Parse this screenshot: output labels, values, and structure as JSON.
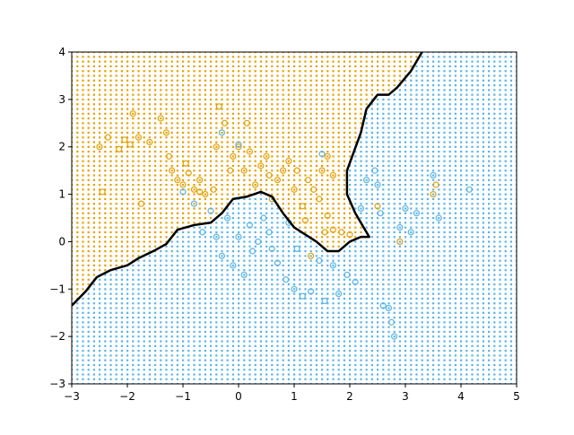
{
  "chart_data": {
    "type": "scatter",
    "title": "",
    "xlabel": "",
    "ylabel": "",
    "xlim": [
      -3,
      5
    ],
    "ylim": [
      -3,
      4
    ],
    "x_ticks": [
      -3,
      -2,
      -1,
      0,
      1,
      2,
      3,
      4,
      5
    ],
    "y_ticks": [
      -3,
      -2,
      -1,
      0,
      1,
      2,
      3,
      4
    ],
    "x_tick_labels": [
      "−3",
      "−2",
      "−1",
      "0",
      "1",
      "2",
      "3",
      "4",
      "5"
    ],
    "y_tick_labels": [
      "−3",
      "−2",
      "−1",
      "0",
      "1",
      "2",
      "3",
      "4"
    ],
    "grid": false,
    "legend": "none",
    "colors": {
      "class_orange": "#E69F00",
      "class_blue": "#56B4E9",
      "boundary": "#000000"
    },
    "background_grid_step": 0.1,
    "decision_boundary": [
      [
        -3.0,
        -1.35
      ],
      [
        -2.75,
        -1.05
      ],
      [
        -2.55,
        -0.75
      ],
      [
        -2.3,
        -0.6
      ],
      [
        -2.0,
        -0.5
      ],
      [
        -1.8,
        -0.35
      ],
      [
        -1.5,
        -0.18
      ],
      [
        -1.3,
        -0.05
      ],
      [
        -1.1,
        0.25
      ],
      [
        -0.8,
        0.35
      ],
      [
        -0.5,
        0.4
      ],
      [
        -0.3,
        0.6
      ],
      [
        -0.1,
        0.9
      ],
      [
        0.15,
        0.95
      ],
      [
        0.4,
        1.05
      ],
      [
        0.6,
        0.95
      ],
      [
        0.8,
        0.6
      ],
      [
        1.0,
        0.3
      ],
      [
        1.2,
        0.15
      ],
      [
        1.4,
        0.0
      ],
      [
        1.6,
        -0.2
      ],
      [
        1.8,
        -0.2
      ],
      [
        2.0,
        0.0
      ],
      [
        2.2,
        0.1
      ],
      [
        2.35,
        0.1
      ],
      [
        2.25,
        0.3
      ],
      [
        2.1,
        0.6
      ],
      [
        1.95,
        1.0
      ],
      [
        1.95,
        1.5
      ],
      [
        2.2,
        2.3
      ],
      [
        2.3,
        2.8
      ],
      [
        2.5,
        3.1
      ],
      [
        2.7,
        3.1
      ],
      [
        2.85,
        3.25
      ],
      [
        3.1,
        3.6
      ],
      [
        3.3,
        4.0
      ]
    ],
    "series": [
      {
        "points": [
          [
            -2.5,
            2.0
          ],
          [
            -2.35,
            2.2
          ],
          [
            -2.15,
            1.95
          ],
          [
            -2.05,
            2.15
          ],
          [
            -1.95,
            2.05
          ],
          [
            -1.9,
            2.7
          ],
          [
            -1.8,
            2.2
          ],
          [
            -1.4,
            2.6
          ],
          [
            -1.3,
            2.3
          ],
          [
            -1.25,
            1.8
          ],
          [
            -1.2,
            1.5
          ],
          [
            -1.1,
            1.3
          ],
          [
            -1.0,
            1.2
          ],
          [
            -0.95,
            1.65
          ],
          [
            -0.9,
            1.45
          ],
          [
            -0.8,
            1.1
          ],
          [
            -0.7,
            1.05
          ],
          [
            -0.6,
            1.0
          ],
          [
            -0.45,
            1.1
          ],
          [
            -0.4,
            2.0
          ],
          [
            -0.35,
            2.85
          ],
          [
            -0.25,
            2.5
          ],
          [
            -0.15,
            1.5
          ],
          [
            -0.1,
            1.8
          ],
          [
            0.0,
            2.0
          ],
          [
            0.1,
            1.5
          ],
          [
            0.15,
            2.5
          ],
          [
            0.2,
            1.9
          ],
          [
            0.3,
            1.2
          ],
          [
            0.4,
            1.6
          ],
          [
            0.5,
            1.8
          ],
          [
            0.55,
            1.4
          ],
          [
            0.7,
            1.3
          ],
          [
            0.8,
            1.5
          ],
          [
            0.9,
            1.7
          ],
          [
            1.0,
            1.1
          ],
          [
            1.05,
            1.5
          ],
          [
            1.15,
            0.75
          ],
          [
            1.25,
            1.3
          ],
          [
            1.35,
            1.1
          ],
          [
            1.45,
            0.9
          ],
          [
            1.5,
            1.5
          ],
          [
            1.6,
            1.8
          ],
          [
            1.7,
            1.4
          ],
          [
            1.6,
            0.55
          ],
          [
            1.7,
            0.25
          ],
          [
            1.3,
            -0.3
          ],
          [
            1.55,
            0.2
          ],
          [
            1.85,
            0.2
          ],
          [
            2.0,
            0.15
          ],
          [
            2.5,
            0.75
          ],
          [
            2.9,
            0.0
          ],
          [
            3.5,
            1.0
          ],
          [
            3.55,
            1.2
          ],
          [
            -2.45,
            1.05
          ],
          [
            -1.75,
            0.8
          ],
          [
            -1.6,
            2.1
          ],
          [
            -0.7,
            1.3
          ],
          [
            1.2,
            0.45
          ],
          [
            0.6,
            0.9
          ]
        ]
      },
      {
        "points": [
          [
            -1.0,
            1.05
          ],
          [
            -0.8,
            0.8
          ],
          [
            -0.65,
            0.2
          ],
          [
            -0.5,
            0.65
          ],
          [
            -0.4,
            0.1
          ],
          [
            -0.3,
            -0.3
          ],
          [
            -0.2,
            0.5
          ],
          [
            -0.1,
            -0.5
          ],
          [
            0.0,
            0.1
          ],
          [
            0.1,
            -0.7
          ],
          [
            0.2,
            0.35
          ],
          [
            0.25,
            -0.2
          ],
          [
            0.35,
            0.0
          ],
          [
            0.45,
            0.5
          ],
          [
            0.55,
            0.2
          ],
          [
            0.6,
            -0.15
          ],
          [
            0.7,
            -0.45
          ],
          [
            0.85,
            -0.8
          ],
          [
            0.9,
            0.4
          ],
          [
            1.0,
            -1.0
          ],
          [
            1.05,
            -0.15
          ],
          [
            1.15,
            -1.15
          ],
          [
            1.3,
            -1.05
          ],
          [
            1.45,
            -0.4
          ],
          [
            1.55,
            -1.25
          ],
          [
            1.7,
            -0.5
          ],
          [
            1.8,
            -1.1
          ],
          [
            1.95,
            -0.7
          ],
          [
            2.1,
            -0.85
          ],
          [
            2.2,
            0.7
          ],
          [
            2.3,
            1.3
          ],
          [
            2.45,
            1.5
          ],
          [
            2.55,
            0.6
          ],
          [
            2.6,
            -1.35
          ],
          [
            2.7,
            -1.4
          ],
          [
            2.75,
            -1.7
          ],
          [
            2.8,
            -2.0
          ],
          [
            2.9,
            0.3
          ],
          [
            3.0,
            0.7
          ],
          [
            3.2,
            0.6
          ],
          [
            3.5,
            1.4
          ],
          [
            3.6,
            0.5
          ],
          [
            4.15,
            1.1
          ],
          [
            0.0,
            2.05
          ],
          [
            1.5,
            1.85
          ],
          [
            -0.3,
            2.3
          ],
          [
            2.5,
            1.2
          ],
          [
            3.1,
            0.2
          ]
        ]
      }
    ]
  }
}
